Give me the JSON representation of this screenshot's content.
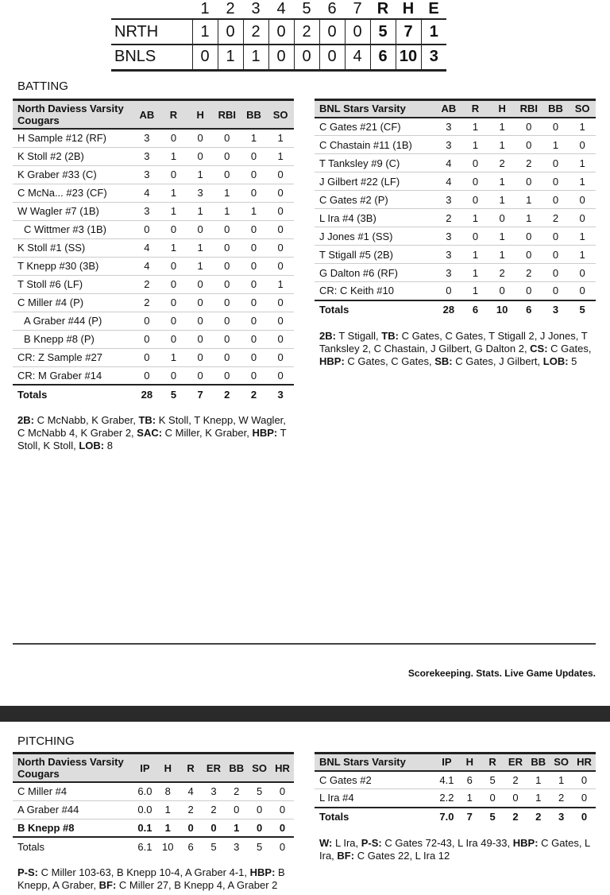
{
  "linescore": {
    "headers": [
      "1",
      "2",
      "3",
      "4",
      "5",
      "6",
      "7",
      "R",
      "H",
      "E"
    ],
    "rows": [
      {
        "team": "NRTH",
        "cells": [
          "1",
          "0",
          "2",
          "0",
          "2",
          "0",
          "0",
          "5",
          "7",
          "1"
        ]
      },
      {
        "team": "BNLS",
        "cells": [
          "0",
          "1",
          "1",
          "0",
          "0",
          "0",
          "4",
          "6",
          "10",
          "3"
        ]
      }
    ]
  },
  "batting": {
    "title": "BATTING",
    "home": {
      "headers": [
        "North Daviess Varsity Cougars",
        "AB",
        "R",
        "H",
        "RBI",
        "BB",
        "SO"
      ],
      "rows": [
        [
          "H Sample #12 (RF)",
          "3",
          "0",
          "0",
          "0",
          "1",
          "1"
        ],
        [
          "K Stoll #2 (2B)",
          "3",
          "1",
          "0",
          "0",
          "0",
          "1"
        ],
        [
          "K Graber #33 (C)",
          "3",
          "0",
          "1",
          "0",
          "0",
          "0"
        ],
        [
          "C McNa... #23 (CF)",
          "4",
          "1",
          "3",
          "1",
          "0",
          "0"
        ],
        [
          "W Wagler #7 (1B)",
          "3",
          "1",
          "1",
          "1",
          "1",
          "0"
        ],
        [
          "  C Wittmer #3 (1B)",
          "0",
          "0",
          "0",
          "0",
          "0",
          "0"
        ],
        [
          "K Stoll #1 (SS)",
          "4",
          "1",
          "1",
          "0",
          "0",
          "0"
        ],
        [
          "T Knepp #30 (3B)",
          "4",
          "0",
          "1",
          "0",
          "0",
          "0"
        ],
        [
          "T Stoll #6 (LF)",
          "2",
          "0",
          "0",
          "0",
          "0",
          "1"
        ],
        [
          "C Miller #4 (P)",
          "2",
          "0",
          "0",
          "0",
          "0",
          "0"
        ],
        [
          "  A Graber #44 (P)",
          "0",
          "0",
          "0",
          "0",
          "0",
          "0"
        ],
        [
          "  B Knepp #8 (P)",
          "0",
          "0",
          "0",
          "0",
          "0",
          "0"
        ],
        [
          "CR: Z Sample #27",
          "0",
          "1",
          "0",
          "0",
          "0",
          "0"
        ],
        [
          "CR: M Graber #14",
          "0",
          "0",
          "0",
          "0",
          "0",
          "0"
        ]
      ],
      "totals": [
        "Totals",
        "28",
        "5",
        "7",
        "2",
        "2",
        "3"
      ],
      "notes": [
        [
          "2B:",
          " C McNabb, K Graber, "
        ],
        [
          "TB:",
          " K Stoll, T Knepp, W Wagler, C McNabb 4, K Graber 2, "
        ],
        [
          "SAC:",
          " C Miller, K Graber, "
        ],
        [
          "HBP:",
          " T Stoll, K Stoll, "
        ],
        [
          "LOB:",
          " 8"
        ]
      ]
    },
    "away": {
      "headers": [
        "BNL Stars Varsity",
        "AB",
        "R",
        "H",
        "RBI",
        "BB",
        "SO"
      ],
      "rows": [
        [
          "C Gates #21 (CF)",
          "3",
          "1",
          "1",
          "0",
          "0",
          "1"
        ],
        [
          "C Chastain #11 (1B)",
          "3",
          "1",
          "1",
          "0",
          "1",
          "0"
        ],
        [
          "T Tanksley #9 (C)",
          "4",
          "0",
          "2",
          "2",
          "0",
          "1"
        ],
        [
          "J Gilbert #22 (LF)",
          "4",
          "0",
          "1",
          "0",
          "0",
          "1"
        ],
        [
          "C Gates #2 (P)",
          "3",
          "0",
          "1",
          "1",
          "0",
          "0"
        ],
        [
          "L Ira #4 (3B)",
          "2",
          "1",
          "0",
          "1",
          "2",
          "0"
        ],
        [
          "J Jones #1 (SS)",
          "3",
          "0",
          "1",
          "0",
          "0",
          "1"
        ],
        [
          "T Stigall #5 (2B)",
          "3",
          "1",
          "1",
          "0",
          "0",
          "1"
        ],
        [
          "G Dalton #6 (RF)",
          "3",
          "1",
          "2",
          "2",
          "0",
          "0"
        ],
        [
          "CR: C Keith #10",
          "0",
          "1",
          "0",
          "0",
          "0",
          "0"
        ]
      ],
      "totals": [
        "Totals",
        "28",
        "6",
        "10",
        "6",
        "3",
        "5"
      ],
      "notes": [
        [
          "2B:",
          " T Stigall, "
        ],
        [
          "TB:",
          " C Gates, C Gates, T Stigall 2, J Jones, T Tanksley 2, C Chastain, J Gilbert, G Dalton 2, "
        ],
        [
          "CS:",
          " C Gates, "
        ],
        [
          "HBP:",
          " C Gates, C Gates, "
        ],
        [
          "SB:",
          " C Gates, J Gilbert, "
        ],
        [
          "LOB:",
          " 5"
        ]
      ]
    }
  },
  "footer": {
    "tagline": "Scorekeeping. Stats. Live Game Updates."
  },
  "pitching": {
    "title": "PITCHING",
    "home": {
      "headers": [
        "North Daviess Varsity Cougars",
        "IP",
        "H",
        "R",
        "ER",
        "BB",
        "SO",
        "HR"
      ],
      "rows": [
        [
          "C Miller #4",
          "6.0",
          "8",
          "4",
          "3",
          "2",
          "5",
          "0"
        ],
        [
          "A Graber #44",
          "0.0",
          "1",
          "2",
          "2",
          "0",
          "0",
          "0"
        ],
        [
          "B Knepp #8",
          "0.1",
          "1",
          "0",
          "0",
          "1",
          "0",
          "0"
        ]
      ],
      "totals": [
        "Totals",
        "6.1",
        "10",
        "6",
        "5",
        "3",
        "5",
        "0"
      ],
      "notes": [
        [
          "P-S:",
          " C Miller 103-63, B Knepp 10-4, A Graber 4-1, "
        ],
        [
          "HBP:",
          " B Knepp, A Graber, "
        ],
        [
          "BF:",
          " C Miller 27, B Knepp 4, A Graber 2"
        ]
      ]
    },
    "away": {
      "headers": [
        "BNL Stars Varsity",
        "IP",
        "H",
        "R",
        "ER",
        "BB",
        "SO",
        "HR"
      ],
      "rows": [
        [
          "C Gates #2",
          "4.1",
          "6",
          "5",
          "2",
          "1",
          "1",
          "0"
        ],
        [
          "L Ira #4",
          "2.2",
          "1",
          "0",
          "0",
          "1",
          "2",
          "0"
        ]
      ],
      "totals": [
        "Totals",
        "7.0",
        "7",
        "5",
        "2",
        "2",
        "3",
        "0"
      ],
      "notes": [
        [
          "W:",
          " L Ira, "
        ],
        [
          "P-S:",
          " C Gates 72-43, L Ira 49-33, "
        ],
        [
          "HBP:",
          " C Gates, L Ira, "
        ],
        [
          "BF:",
          " C Gates 22, L Ira 12"
        ]
      ]
    }
  }
}
